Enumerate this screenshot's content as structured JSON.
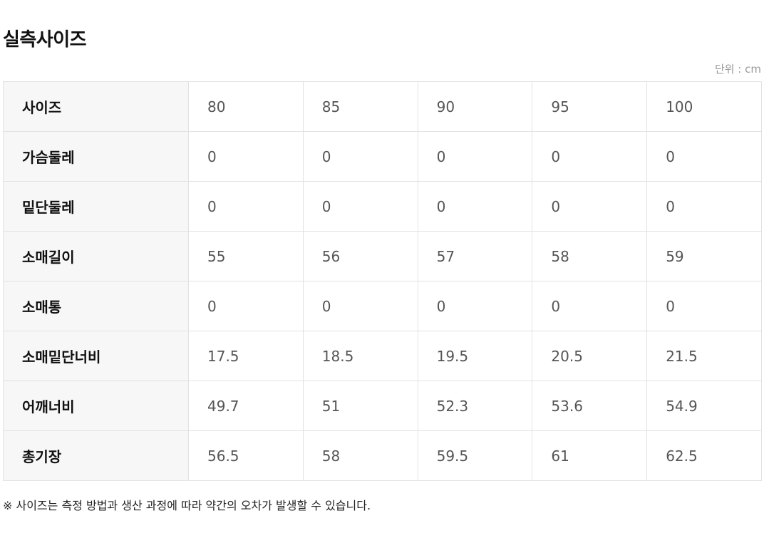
{
  "title": "실측사이즈",
  "unit_label": "단위 : cm",
  "table": {
    "rows": [
      {
        "label": "사이즈",
        "values": [
          "80",
          "85",
          "90",
          "95",
          "100"
        ]
      },
      {
        "label": "가슴둘레",
        "values": [
          "0",
          "0",
          "0",
          "0",
          "0"
        ]
      },
      {
        "label": "밑단둘레",
        "values": [
          "0",
          "0",
          "0",
          "0",
          "0"
        ]
      },
      {
        "label": "소매길이",
        "values": [
          "55",
          "56",
          "57",
          "58",
          "59"
        ]
      },
      {
        "label": "소매통",
        "values": [
          "0",
          "0",
          "0",
          "0",
          "0"
        ]
      },
      {
        "label": "소매밑단너비",
        "values": [
          "17.5",
          "18.5",
          "19.5",
          "20.5",
          "21.5"
        ]
      },
      {
        "label": "어깨너비",
        "values": [
          "49.7",
          "51",
          "52.3",
          "53.6",
          "54.9"
        ]
      },
      {
        "label": "총기장",
        "values": [
          "56.5",
          "58",
          "59.5",
          "61",
          "62.5"
        ]
      }
    ]
  },
  "note": "※ 사이즈는 측정 방법과 생산 과정에 따라 약간의 오차가 발생할 수 있습니다."
}
